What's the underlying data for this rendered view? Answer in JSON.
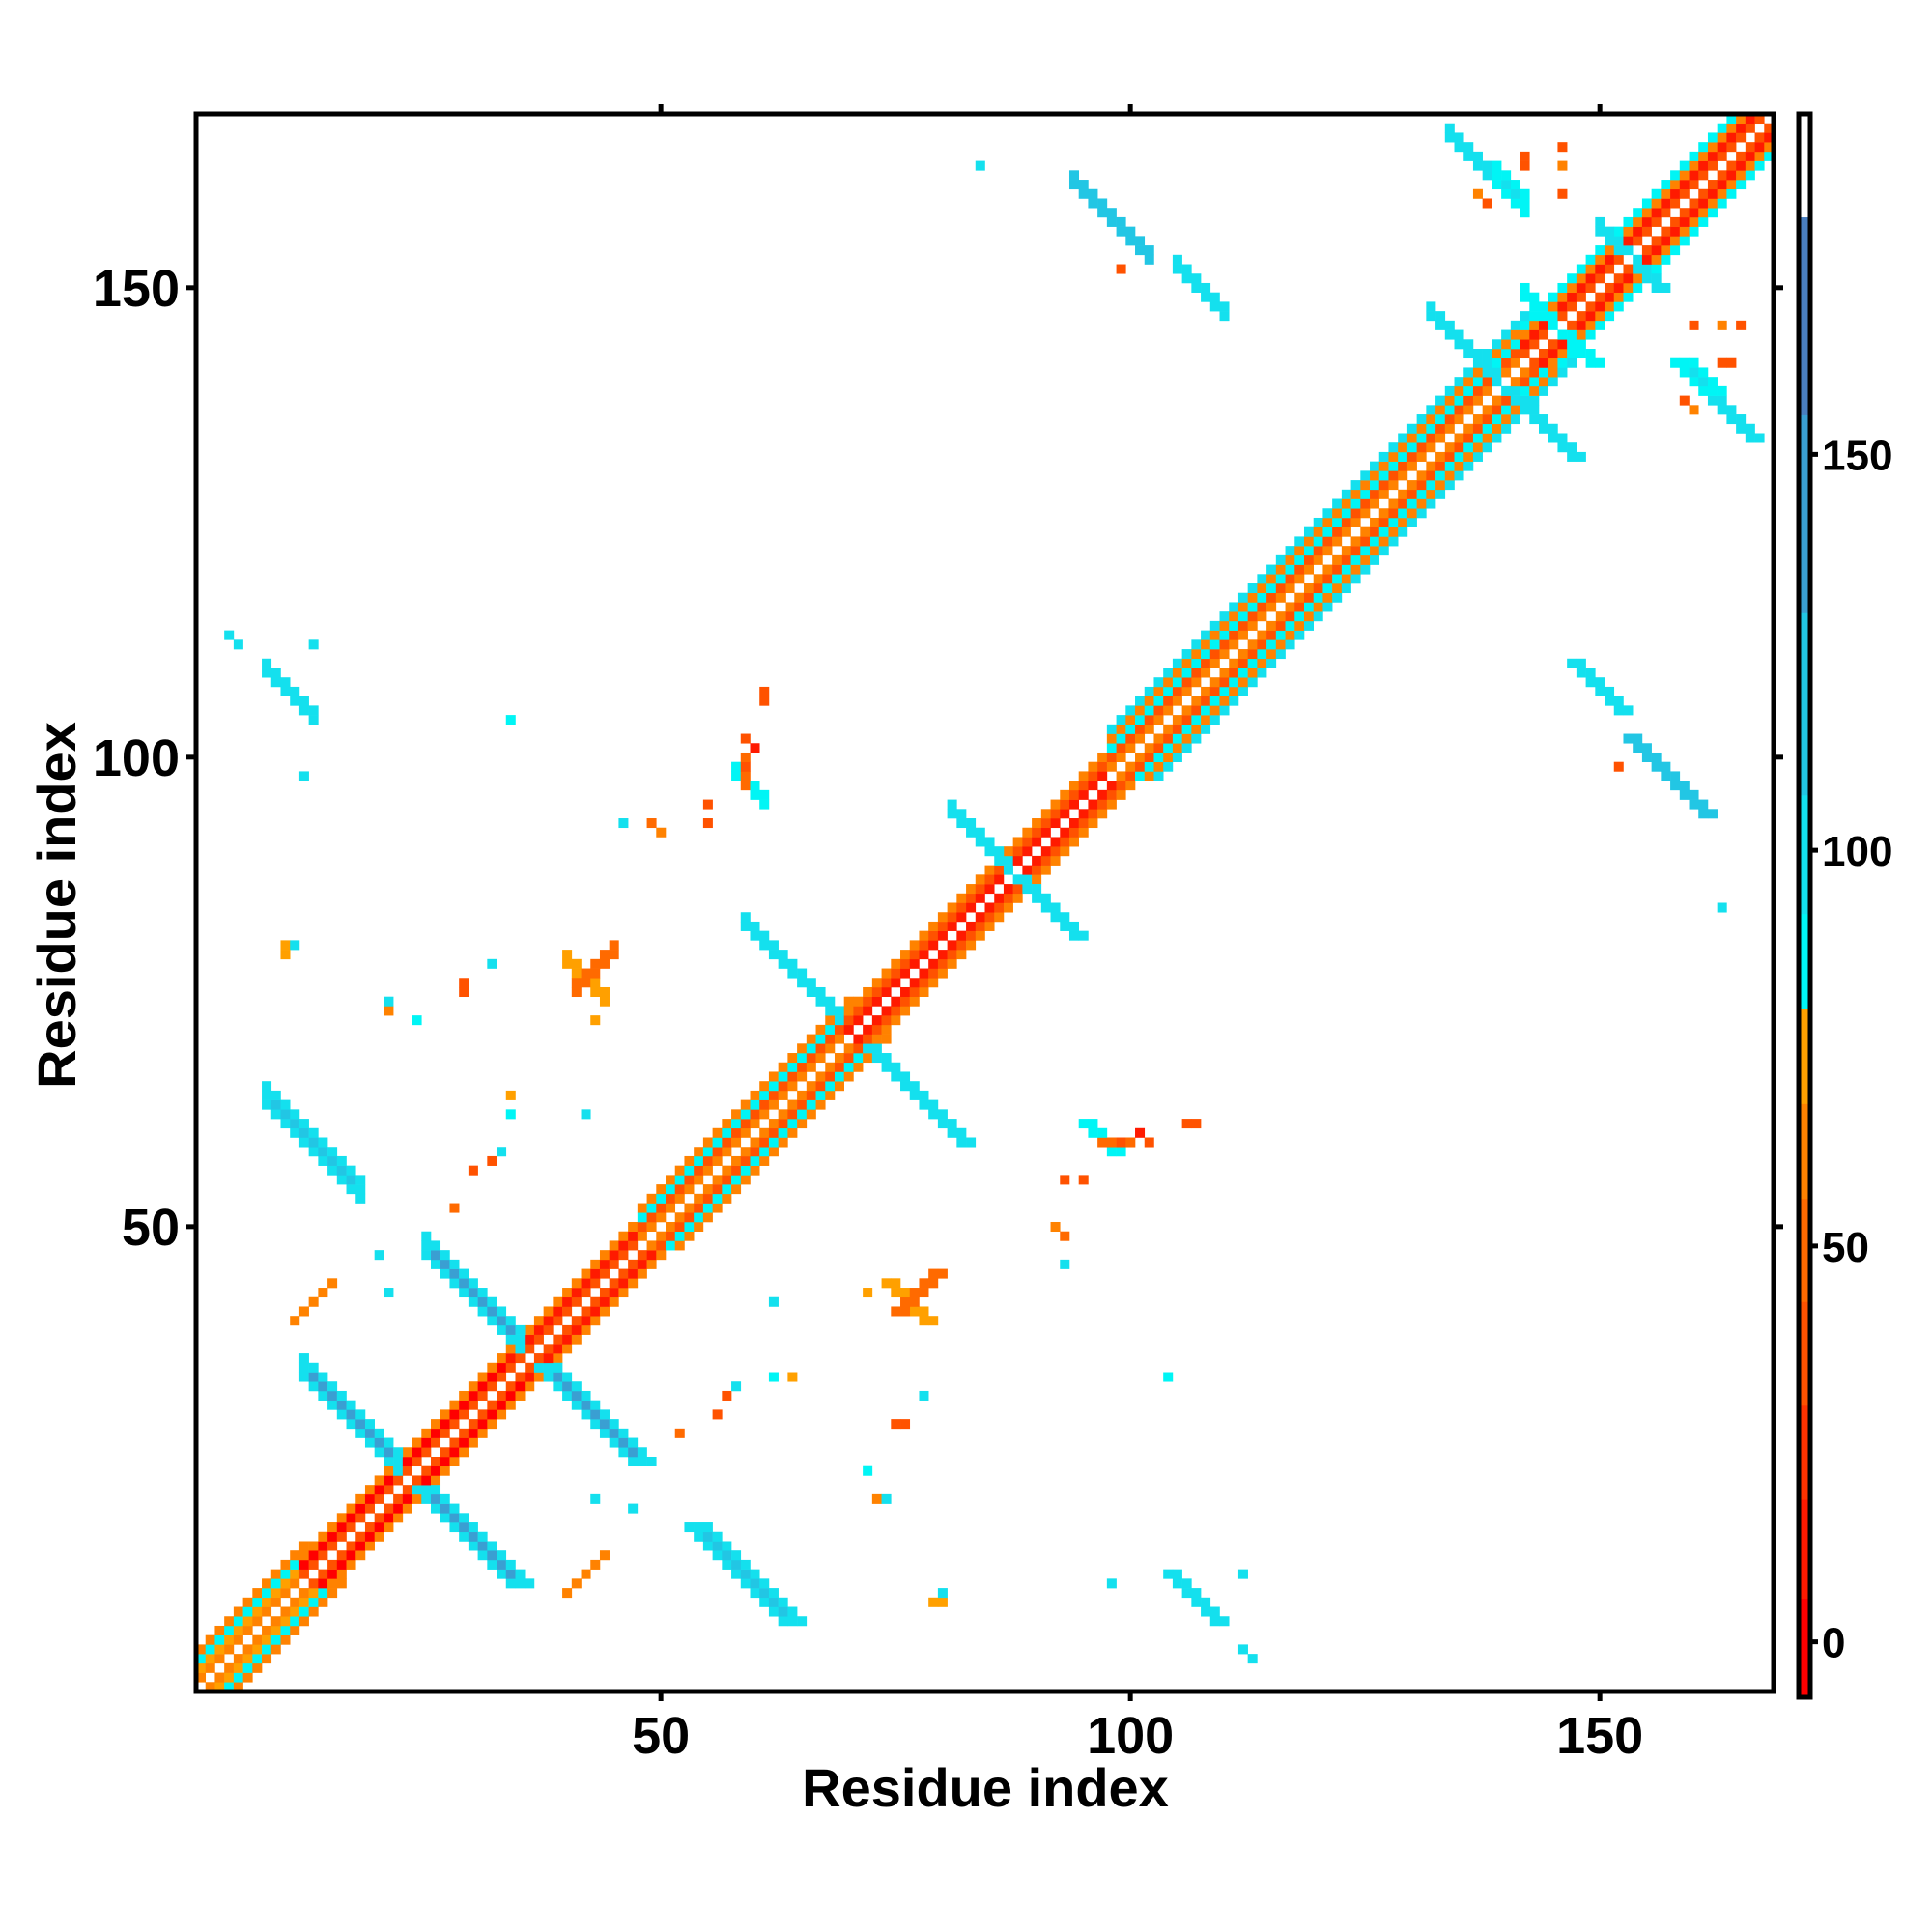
{
  "chart_data": {
    "type": "heatmap",
    "title": "",
    "xlabel": "Residue index",
    "ylabel": "Residue index",
    "n_residues": 168,
    "xlim": [
      0.5,
      168.5
    ],
    "ylim": [
      0.5,
      168.5
    ],
    "xticks": [
      50,
      100,
      150
    ],
    "yticks": [
      50,
      100,
      150
    ],
    "xtick_labels": [
      "50",
      "100",
      "150"
    ],
    "ytick_labels": [
      "50",
      "100",
      "150"
    ],
    "grid": false,
    "symmetric": true,
    "colorbar": {
      "range": [
        -7,
        193
      ],
      "ticks": [
        0,
        50,
        100,
        150
      ],
      "tick_labels": [
        "0",
        "50",
        "100",
        "150"
      ],
      "bins": [
        {
          "max": 5.5,
          "color": "#ff0000"
        },
        {
          "max": 18,
          "color": "#ff1a00"
        },
        {
          "max": 30,
          "color": "#ff3300"
        },
        {
          "max": 43,
          "color": "#ff5200"
        },
        {
          "max": 56,
          "color": "#ff6a00"
        },
        {
          "max": 68,
          "color": "#ff8200"
        },
        {
          "max": 80,
          "color": "#ffa000"
        },
        {
          "max": 92,
          "color": "#00f5f5"
        },
        {
          "max": 107,
          "color": "#14e0ee"
        },
        {
          "max": 130,
          "color": "#22c6e4"
        },
        {
          "max": 155,
          "color": "#3a9fd2"
        },
        {
          "max": 180,
          "color": "#4a7fc0"
        },
        {
          "max": 193,
          "color": "#ffffff"
        }
      ]
    },
    "diagonal_bands": [
      {
        "from": 1,
        "to": 12,
        "offsets": [
          [
            1,
            60
          ],
          [
            2,
            75
          ],
          [
            3,
            90
          ],
          [
            4,
            60
          ]
        ]
      },
      {
        "from": 12,
        "to": 34,
        "offsets": [
          [
            1,
            35
          ],
          [
            2,
            5
          ],
          [
            3,
            60
          ]
        ]
      },
      {
        "from": 34,
        "to": 48,
        "offsets": [
          [
            1,
            35
          ],
          [
            2,
            10
          ],
          [
            3,
            60
          ]
        ]
      },
      {
        "from": 48,
        "to": 70,
        "offsets": [
          [
            1,
            60
          ],
          [
            2,
            35
          ],
          [
            3,
            90
          ],
          [
            4,
            60
          ]
        ]
      },
      {
        "from": 70,
        "to": 98,
        "offsets": [
          [
            1,
            10
          ],
          [
            2,
            35
          ],
          [
            3,
            60
          ]
        ]
      },
      {
        "from": 98,
        "to": 142,
        "offsets": [
          [
            1,
            60
          ],
          [
            2,
            35
          ],
          [
            3,
            90
          ],
          [
            4,
            60
          ],
          [
            5,
            95
          ]
        ]
      },
      {
        "from": 142,
        "to": 168,
        "offsets": [
          [
            1,
            35
          ],
          [
            2,
            10
          ],
          [
            3,
            60
          ],
          [
            4,
            90
          ]
        ]
      }
    ],
    "contact_runs": [
      {
        "i": 12,
        "j": 35,
        "n": 11,
        "dir": "anti",
        "w": 3,
        "v": 140,
        "ve": 100
      },
      {
        "i": 25,
        "j": 48,
        "n": 11,
        "dir": "anti",
        "w": 3,
        "v": 140,
        "ve": 100
      },
      {
        "i": 8,
        "j": 64,
        "n": 11,
        "dir": "anti",
        "w": 3,
        "v": 130,
        "ve": 100
      },
      {
        "i": 59,
        "j": 83,
        "n": 11,
        "dir": "anti",
        "w": 2,
        "v": 135,
        "ve": 100
      },
      {
        "i": 81,
        "j": 95,
        "n": 7,
        "dir": "anti",
        "w": 2,
        "v": 125,
        "ve": 95
      },
      {
        "i": 132,
        "j": 148,
        "n": 8,
        "dir": "anti",
        "w": 2,
        "v": 135,
        "ve": 100
      },
      {
        "i": 142,
        "j": 150,
        "n": 5,
        "dir": "anti",
        "w": 2,
        "v": 110,
        "ve": 90
      },
      {
        "i": 150,
        "j": 157,
        "n": 5,
        "dir": "anti",
        "w": 2,
        "v": 120,
        "ve": 100
      },
      {
        "i": 94,
        "j": 162,
        "n": 9,
        "dir": "anti",
        "w": 2,
        "v": 145,
        "ve": 110
      },
      {
        "i": 105,
        "j": 153,
        "n": 6,
        "dir": "anti",
        "w": 2,
        "v": 140,
        "ve": 100
      },
      {
        "i": 134,
        "j": 167,
        "n": 8,
        "dir": "anti",
        "w": 2,
        "v": 140,
        "ve": 100
      },
      {
        "i": 139,
        "j": 162,
        "n": 4,
        "dir": "anti",
        "w": 3,
        "v": 100,
        "ve": 90
      },
      {
        "i": 8,
        "j": 110,
        "n": 6,
        "dir": "anti",
        "w": 2,
        "v": 135,
        "ve": 100
      },
      {
        "i": 58,
        "j": 99,
        "n": 4,
        "dir": "anti",
        "w": 2,
        "v": 95,
        "ve": 85
      },
      {
        "i": 40,
        "j": 79,
        "n": 5,
        "dir": "anti",
        "w": 2,
        "v": 55,
        "ve": 75
      },
      {
        "i": 11,
        "j": 40,
        "n": 5,
        "dir": "par",
        "w": 1,
        "v": 60,
        "ve": 60
      },
      {
        "i": 41,
        "j": 76,
        "n": 5,
        "dir": "par",
        "w": 2,
        "v": 85,
        "ve": 50
      }
    ],
    "contacts": [
      [
        5,
        112,
        95
      ],
      [
        4,
        113,
        95
      ],
      [
        13,
        112,
        95
      ],
      [
        84,
        163,
        95
      ],
      [
        12,
        98,
        95
      ],
      [
        34,
        104,
        90
      ],
      [
        99,
        152,
        40
      ],
      [
        137,
        160,
        60
      ],
      [
        138,
        159,
        40
      ],
      [
        142,
        164,
        35
      ],
      [
        142,
        163,
        35
      ],
      [
        50,
        92,
        60
      ],
      [
        46,
        93,
        95
      ],
      [
        55,
        93,
        40
      ],
      [
        61,
        107,
        40
      ],
      [
        61,
        106,
        35
      ],
      [
        49,
        93,
        45
      ],
      [
        55,
        95,
        40
      ],
      [
        24,
        72,
        90
      ],
      [
        21,
        73,
        60
      ],
      [
        29,
        75,
        35
      ],
      [
        32,
        78,
        95
      ],
      [
        32,
        57,
        40
      ],
      [
        34,
        62,
        90
      ],
      [
        34,
        64,
        70
      ],
      [
        28,
        52,
        45
      ],
      [
        21,
        43,
        95
      ],
      [
        20,
        47,
        95
      ],
      [
        43,
        72,
        70
      ],
      [
        42,
        62,
        95
      ],
      [
        33,
        58,
        95
      ],
      [
        30,
        56,
        35
      ],
      [
        29,
        76,
        40
      ],
      [
        21,
        74,
        95
      ],
      [
        10,
        80,
        70
      ],
      [
        11,
        80,
        95
      ],
      [
        10,
        79,
        75
      ],
      [
        59,
        97,
        45
      ],
      [
        59,
        98,
        45
      ],
      [
        59,
        99,
        40
      ],
      [
        59,
        100,
        45
      ],
      [
        60,
        101,
        10
      ],
      [
        59,
        102,
        40
      ],
      [
        146,
        160,
        35
      ],
      [
        146,
        163,
        60
      ],
      [
        146,
        165,
        35
      ]
    ]
  }
}
